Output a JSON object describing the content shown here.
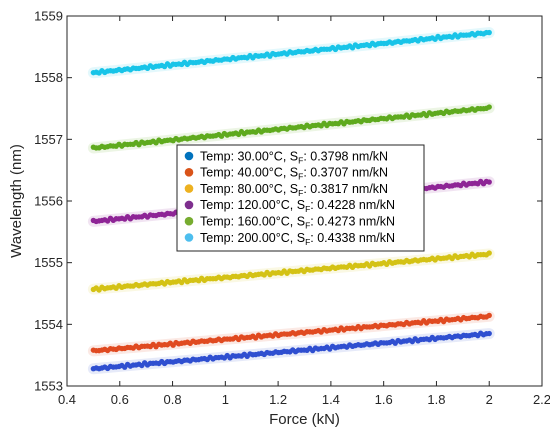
{
  "chart_data": {
    "type": "scatter",
    "xlabel": "Force (kN)",
    "ylabel": "Wavelength (nm)",
    "xlim": [
      0.4,
      2.2
    ],
    "ylim": [
      1553,
      1559
    ],
    "xticks": [
      "0.4",
      "0.6",
      "0.8",
      "1",
      "1.2",
      "1.4",
      "1.6",
      "1.8",
      "2",
      "2.2"
    ],
    "yticks": [
      "1553",
      "1554",
      "1555",
      "1556",
      "1557",
      "1558",
      "1559"
    ],
    "grid": false,
    "legend_position": "center",
    "legend_unit": "nm/kN",
    "series": [
      {
        "name": "30.00°C",
        "temp_label": "Temp:  30.00°C,",
        "sf": "0.3798",
        "color": "#0072BD",
        "line_color": "#2F4FD0",
        "x_start": 0.5,
        "x_end": 2.0,
        "y_start": 1553.28,
        "y_end": 1553.85
      },
      {
        "name": "40.00°C",
        "temp_label": "Temp:  40.00°C,",
        "sf": "0.3707",
        "color": "#D95319",
        "line_color": "#E04A20",
        "x_start": 0.5,
        "x_end": 2.0,
        "y_start": 1553.57,
        "y_end": 1554.13
      },
      {
        "name": "80.00°C",
        "temp_label": "Temp:  80.00°C,",
        "sf": "0.3817",
        "color": "#EDB120",
        "line_color": "#D4C215",
        "x_start": 0.5,
        "x_end": 2.0,
        "y_start": 1554.57,
        "y_end": 1555.14
      },
      {
        "name": "120.00°C",
        "temp_label": "Temp:  120.00°C,",
        "sf": "0.4228",
        "color": "#7E2F8E",
        "line_color": "#8E2596",
        "x_start": 0.5,
        "x_end": 2.0,
        "y_start": 1555.67,
        "y_end": 1556.31
      },
      {
        "name": "160.00°C",
        "temp_label": "Temp:  160.00°C,",
        "sf": "0.4273",
        "color": "#77AC30",
        "line_color": "#5FAA1E",
        "x_start": 0.5,
        "x_end": 2.0,
        "y_start": 1556.86,
        "y_end": 1557.51
      },
      {
        "name": "200.00°C",
        "temp_label": "Temp:  200.00°C,",
        "sf": "0.4338",
        "color": "#4DBEEE",
        "line_color": "#18C4E8",
        "x_start": 0.5,
        "x_end": 2.0,
        "y_start": 1558.08,
        "y_end": 1558.73
      }
    ]
  }
}
